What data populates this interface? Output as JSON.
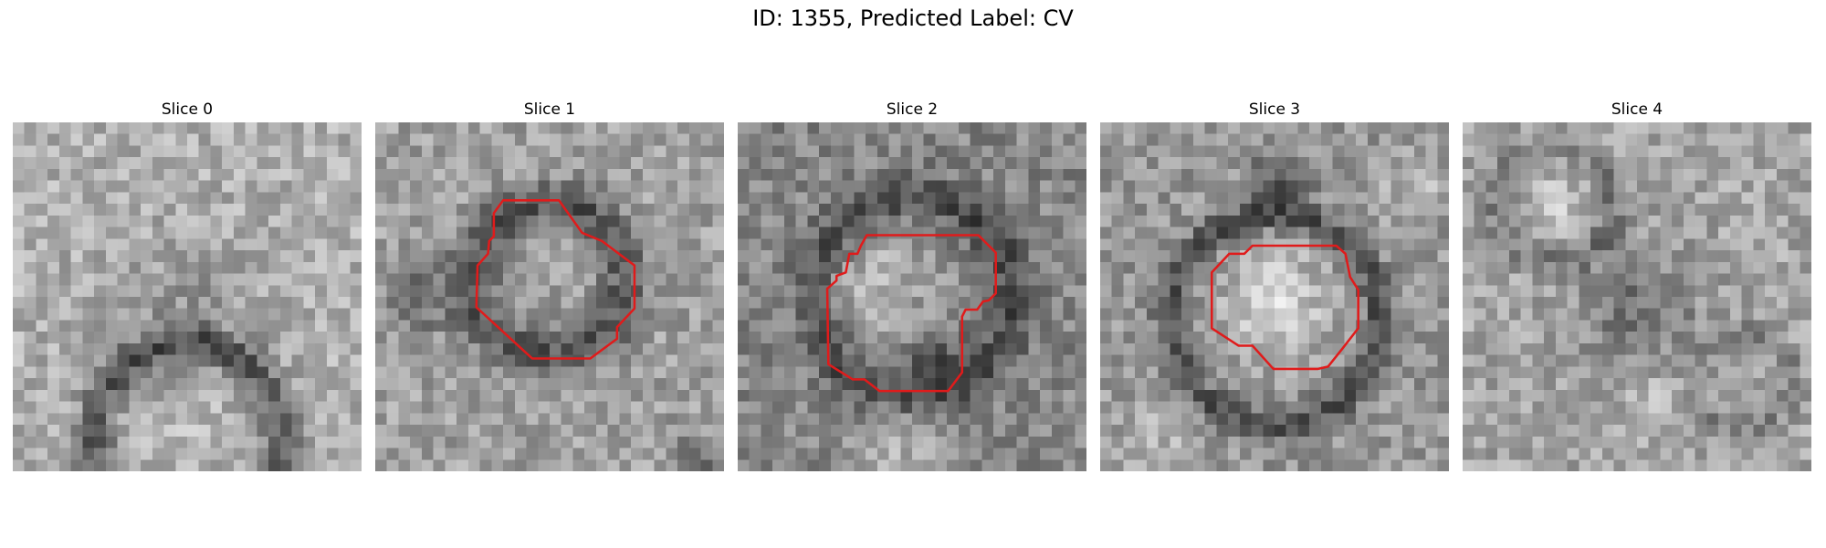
{
  "figure": {
    "title": "ID: 1355, Predicted Label: CV"
  },
  "panels": [
    {
      "title": "Slice 0",
      "has_contour": false,
      "contour_color": "#e01b1b"
    },
    {
      "title": "Slice 1",
      "has_contour": true,
      "contour_color": "#e01b1b"
    },
    {
      "title": "Slice 2",
      "has_contour": true,
      "contour_color": "#e01b1b"
    },
    {
      "title": "Slice 3",
      "has_contour": true,
      "contour_color": "#e01b1b"
    },
    {
      "title": "Slice 4",
      "has_contour": false,
      "contour_color": "#e01b1b"
    }
  ]
}
